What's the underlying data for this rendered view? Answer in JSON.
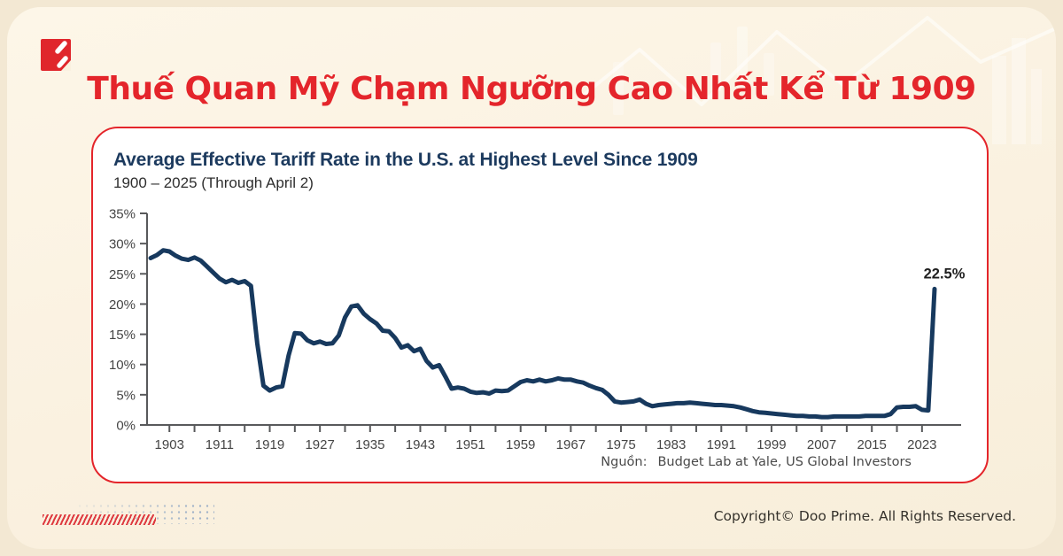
{
  "page": {
    "title_vi": "Thuế Quan Mỹ Chạm Ngưỡng Cao Nhất Kể Từ 1909",
    "copyright": "Copyright© Doo Prime. All Rights Reserved.",
    "brand": "Doo Prime",
    "colors": {
      "accent_red": "#E4252B",
      "line_navy": "#17395E",
      "background_cream": "#FAF1E0"
    }
  },
  "card": {
    "title": "Average Effective Tariff Rate in the U.S. at Highest Level Since 1909",
    "subtitle": "1900 – 2025 (Through April 2)",
    "source_label": "Nguồn:",
    "source_text": "Budget Lab at Yale, US Global Investors"
  },
  "chart_data": {
    "type": "line",
    "title": "Average Effective Tariff Rate in the U.S. at Highest Level Since 1909",
    "subtitle": "1900 – 2025 (Through April 2)",
    "line_color": "#17395E",
    "axis_color": "#58595B",
    "tick_label_color": "#454545",
    "x_domain": [
      1900,
      2026
    ],
    "ylim": [
      0,
      35
    ],
    "y_ticks": [
      0,
      5,
      10,
      15,
      20,
      25,
      30,
      35
    ],
    "y_tick_suffix": "%",
    "x_tick_labels": [
      1903,
      1911,
      1919,
      1927,
      1935,
      1943,
      1951,
      1959,
      1967,
      1975,
      1983,
      1991,
      1999,
      2007,
      2015,
      2023
    ],
    "x_minor_tick_start": 1903,
    "x_minor_tick_end": 2023,
    "x_minor_tick_step": 4,
    "annotation": {
      "year": 2025,
      "value": 22.5,
      "label": "22.5%"
    },
    "year_start": 1900,
    "values": [
      27.6,
      28.1,
      28.9,
      28.7,
      28.0,
      27.5,
      27.3,
      27.7,
      27.2,
      26.2,
      25.2,
      24.2,
      23.6,
      24.0,
      23.5,
      23.8,
      23.0,
      13.5,
      6.5,
      5.7,
      6.2,
      6.4,
      11.5,
      15.2,
      15.1,
      14.0,
      13.5,
      13.8,
      13.4,
      13.5,
      14.8,
      17.8,
      19.6,
      19.8,
      18.4,
      17.5,
      16.8,
      15.6,
      15.5,
      14.4,
      12.8,
      13.2,
      12.2,
      12.6,
      10.6,
      9.5,
      9.9,
      8.0,
      6.0,
      6.2,
      6.0,
      5.5,
      5.3,
      5.4,
      5.2,
      5.7,
      5.6,
      5.7,
      6.4,
      7.1,
      7.4,
      7.2,
      7.5,
      7.2,
      7.4,
      7.7,
      7.5,
      7.5,
      7.2,
      7.0,
      6.5,
      6.1,
      5.8,
      5.0,
      3.9,
      3.7,
      3.8,
      3.9,
      4.2,
      3.5,
      3.1,
      3.3,
      3.4,
      3.5,
      3.6,
      3.6,
      3.7,
      3.6,
      3.5,
      3.4,
      3.3,
      3.3,
      3.2,
      3.1,
      2.9,
      2.6,
      2.3,
      2.1,
      2.0,
      1.9,
      1.8,
      1.7,
      1.6,
      1.5,
      1.5,
      1.4,
      1.4,
      1.3,
      1.3,
      1.4,
      1.4,
      1.4,
      1.4,
      1.4,
      1.5,
      1.5,
      1.5,
      1.5,
      1.8,
      2.9,
      3.0,
      3.0,
      3.1,
      2.5,
      2.4,
      22.5
    ]
  }
}
